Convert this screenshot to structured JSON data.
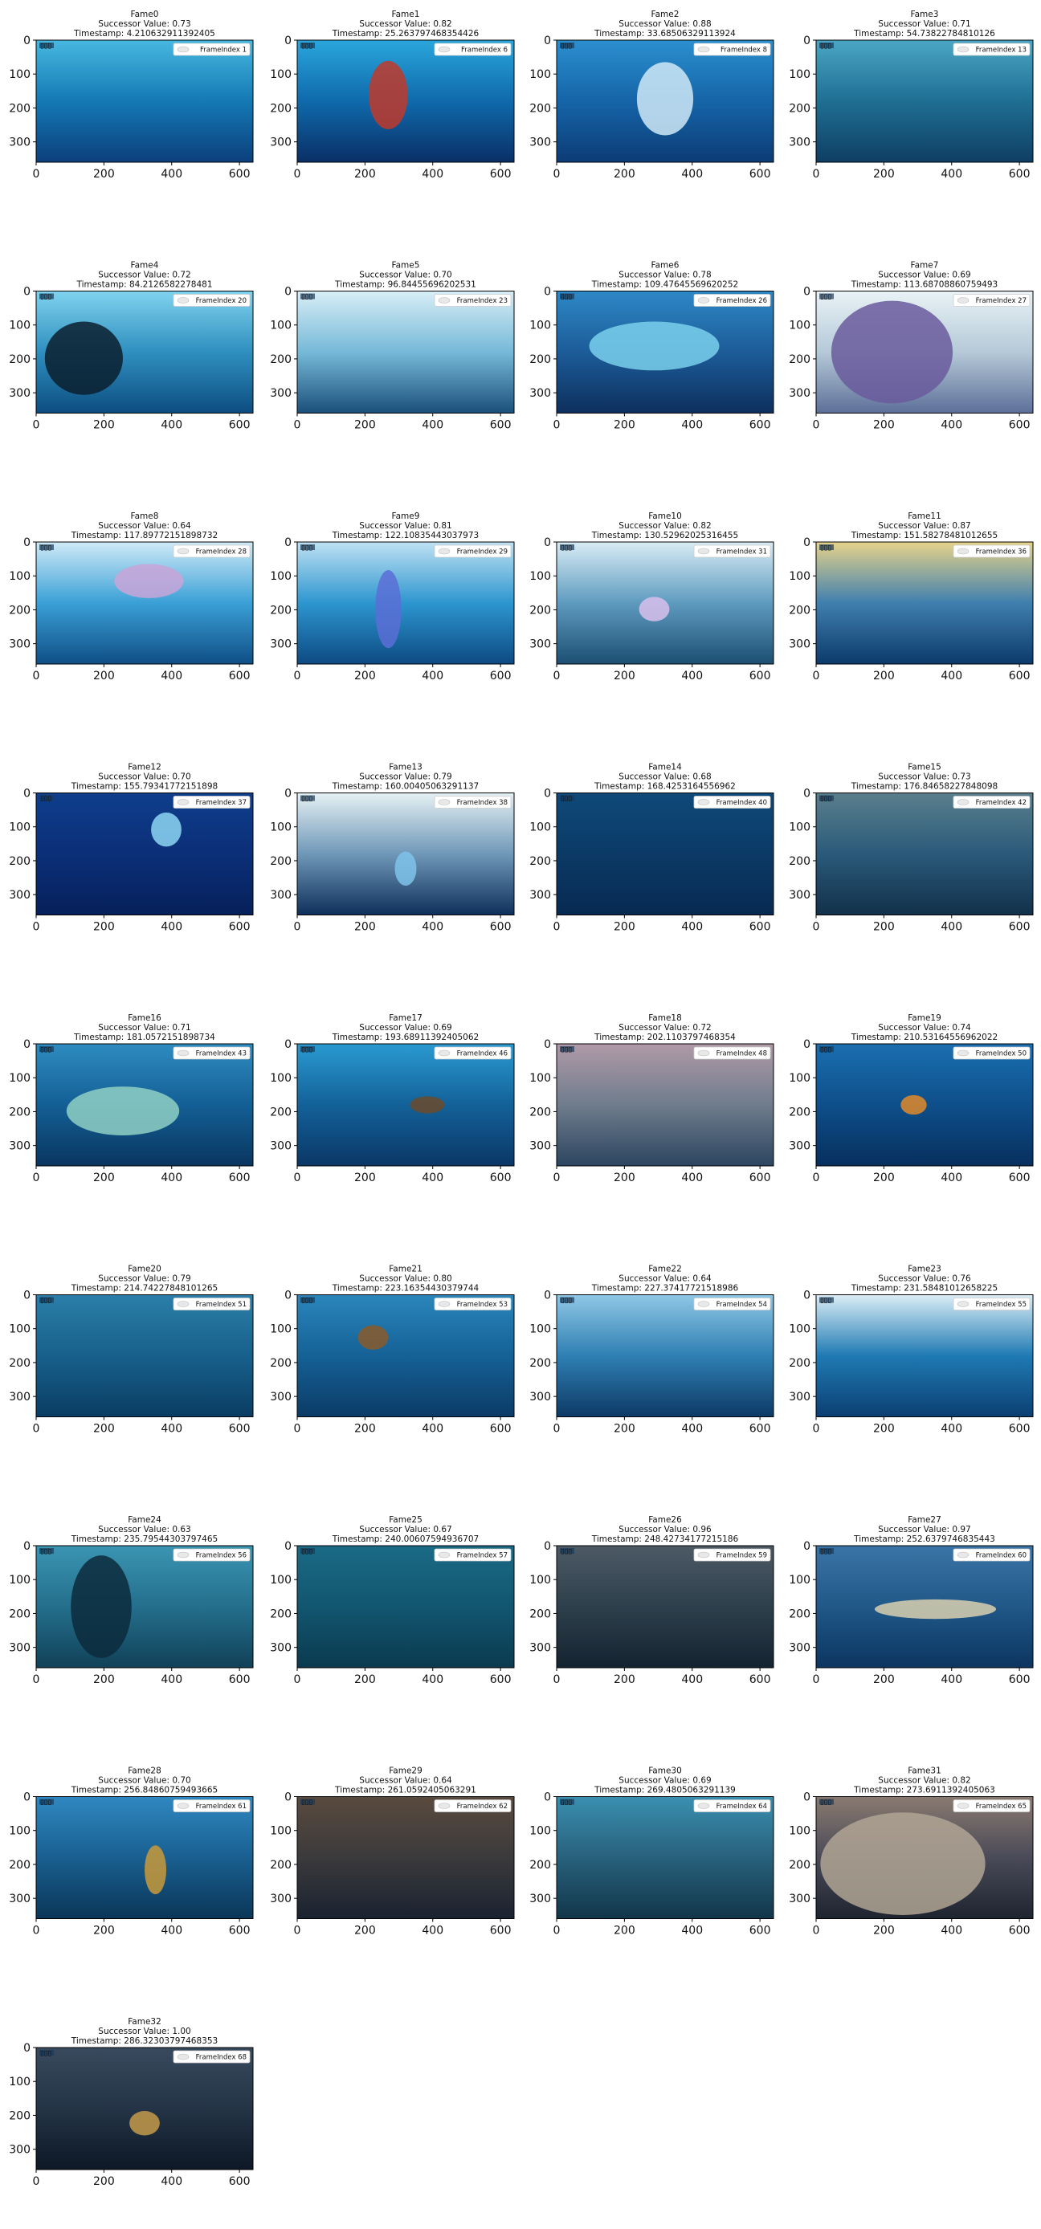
{
  "figure": {
    "ncols": 4,
    "xticks": [
      0,
      200,
      400,
      600
    ],
    "yticks": [
      0,
      100,
      200,
      300
    ],
    "xlim": [
      0,
      640
    ],
    "ylim": [
      360,
      0
    ],
    "badge": "▯▯▯"
  },
  "chart_data": [
    {
      "type": "image",
      "title": "Fame0",
      "successor_value": "0.73",
      "timestamp": "4.210632911392405",
      "legend": "FrameIndex 1",
      "colors": [
        "#47b8e0",
        "#1479b4",
        "#0b3f7c"
      ]
    },
    {
      "type": "image",
      "title": "Fame1",
      "successor_value": "0.82",
      "timestamp": "25.263797468354426",
      "legend": "FrameIndex 6",
      "colors": [
        "#2aa6dc",
        "#0f6aab",
        "#0a2f66"
      ],
      "subject": {
        "color": "#c0392b",
        "cx": 0.42,
        "cy": 0.45,
        "rx": 0.09,
        "ry": 0.28
      }
    },
    {
      "type": "image",
      "title": "Fame2",
      "successor_value": "0.88",
      "timestamp": "33.68506329113924",
      "legend": "FrameIndex 8",
      "colors": [
        "#2b8fcf",
        "#1565a8",
        "#0c3c76"
      ],
      "subject": {
        "color": "#cfe9f7",
        "cx": 0.5,
        "cy": 0.48,
        "rx": 0.13,
        "ry": 0.3
      }
    },
    {
      "type": "image",
      "title": "Fame3",
      "successor_value": "0.71",
      "timestamp": "54.73822784810126",
      "legend": "FrameIndex 13",
      "colors": [
        "#4aa6c4",
        "#1f6f93",
        "#0f3e63"
      ]
    },
    {
      "type": "image",
      "title": "Fame4",
      "successor_value": "0.72",
      "timestamp": "84.2126582278481",
      "legend": "FrameIndex 20",
      "colors": [
        "#7fd3ee",
        "#2f8fbf",
        "#0d4d80"
      ],
      "subject": {
        "color": "#0b1f2e",
        "cx": 0.22,
        "cy": 0.55,
        "rx": 0.18,
        "ry": 0.3
      }
    },
    {
      "type": "image",
      "title": "Fame5",
      "successor_value": "0.70",
      "timestamp": "96.84455696202531",
      "legend": "FrameIndex 23",
      "colors": [
        "#d8eef6",
        "#76b9d8",
        "#1a4f7a"
      ]
    },
    {
      "type": "image",
      "title": "Fame6",
      "successor_value": "0.78",
      "timestamp": "109.47645569620252",
      "legend": "FrameIndex 26",
      "colors": [
        "#2e88c6",
        "#1c5c99",
        "#0e2f5d"
      ],
      "subject": {
        "color": "#7ad0ec",
        "cx": 0.45,
        "cy": 0.45,
        "rx": 0.3,
        "ry": 0.2
      }
    },
    {
      "type": "image",
      "title": "Fame7",
      "successor_value": "0.69",
      "timestamp": "113.68708860759493",
      "legend": "FrameIndex 27",
      "colors": [
        "#e9f3f6",
        "#b5c9d8",
        "#5d6f98"
      ],
      "subject": {
        "color": "#6a5a9c",
        "cx": 0.35,
        "cy": 0.5,
        "rx": 0.28,
        "ry": 0.42
      }
    },
    {
      "type": "image",
      "title": "Fame8",
      "successor_value": "0.64",
      "timestamp": "117.89772151898732",
      "legend": "FrameIndex 28",
      "colors": [
        "#cfeaf7",
        "#3aa0d6",
        "#0f4e86"
      ],
      "subject": {
        "color": "#c9a4d8",
        "cx": 0.52,
        "cy": 0.32,
        "rx": 0.16,
        "ry": 0.14
      }
    },
    {
      "type": "image",
      "title": "Fame9",
      "successor_value": "0.81",
      "timestamp": "122.10835443037973",
      "legend": "FrameIndex 29",
      "colors": [
        "#bfe2f3",
        "#2d96cf",
        "#0d4a83"
      ],
      "subject": {
        "color": "#5b6fd6",
        "cx": 0.42,
        "cy": 0.55,
        "rx": 0.06,
        "ry": 0.32
      }
    },
    {
      "type": "image",
      "title": "Fame10",
      "successor_value": "0.82",
      "timestamp": "130.52962025316455",
      "legend": "FrameIndex 31",
      "colors": [
        "#d9ecf5",
        "#5e9bbf",
        "#1c4f72"
      ],
      "subject": {
        "color": "#d8c0ec",
        "cx": 0.45,
        "cy": 0.55,
        "rx": 0.07,
        "ry": 0.1
      }
    },
    {
      "type": "image",
      "title": "Fame11",
      "successor_value": "0.87",
      "timestamp": "151.58278481012655",
      "legend": "FrameIndex 36",
      "colors": [
        "#e6d38a",
        "#3f7fae",
        "#0b3a6b"
      ]
    },
    {
      "type": "image",
      "title": "Fame12",
      "successor_value": "0.70",
      "timestamp": "155.79341772151898",
      "legend": "FrameIndex 37",
      "colors": [
        "#0f3e8c",
        "#0b2f78",
        "#06205a"
      ],
      "subject": {
        "color": "#8ed6f3",
        "cx": 0.6,
        "cy": 0.3,
        "rx": 0.07,
        "ry": 0.14
      }
    },
    {
      "type": "image",
      "title": "Fame13",
      "successor_value": "0.79",
      "timestamp": "160.00405063291137",
      "legend": "FrameIndex 38",
      "colors": [
        "#e5f1f4",
        "#6f98b8",
        "#0e2f5b"
      ],
      "subject": {
        "color": "#7fc3ea",
        "cx": 0.5,
        "cy": 0.62,
        "rx": 0.05,
        "ry": 0.14
      }
    },
    {
      "type": "image",
      "title": "Fame14",
      "successor_value": "0.68",
      "timestamp": "168.4253164556962",
      "legend": "FrameIndex 40",
      "colors": [
        "#0f4a7a",
        "#0b3a66",
        "#082a52"
      ]
    },
    {
      "type": "image",
      "title": "Fame15",
      "successor_value": "0.73",
      "timestamp": "176.84658227848098",
      "legend": "FrameIndex 42",
      "colors": [
        "#5a7f8c",
        "#2a5a7a",
        "#12304a"
      ]
    },
    {
      "type": "image",
      "title": "Fame16",
      "successor_value": "0.71",
      "timestamp": "181.0572151898734",
      "legend": "FrameIndex 43",
      "colors": [
        "#2e8cc0",
        "#135f95",
        "#09365f"
      ],
      "subject": {
        "color": "#8fd0c4",
        "cx": 0.4,
        "cy": 0.55,
        "rx": 0.26,
        "ry": 0.2
      }
    },
    {
      "type": "image",
      "title": "Fame17",
      "successor_value": "0.69",
      "timestamp": "193.68911392405062",
      "legend": "FrameIndex 46",
      "colors": [
        "#2a9ad0",
        "#136199",
        "#0a3766"
      ],
      "subject": {
        "color": "#6b4a2a",
        "cx": 0.6,
        "cy": 0.5,
        "rx": 0.08,
        "ry": 0.07
      }
    },
    {
      "type": "image",
      "title": "Fame18",
      "successor_value": "0.72",
      "timestamp": "202.1103797468354",
      "legend": "FrameIndex 48",
      "colors": [
        "#b09aa8",
        "#6f7c8c",
        "#2c4560"
      ]
    },
    {
      "type": "image",
      "title": "Fame19",
      "successor_value": "0.74",
      "timestamp": "210.53164556962022",
      "legend": "FrameIndex 50",
      "colors": [
        "#1a6fb0",
        "#0e4f8a",
        "#072f5e"
      ],
      "subject": {
        "color": "#e08a2a",
        "cx": 0.45,
        "cy": 0.5,
        "rx": 0.06,
        "ry": 0.08
      }
    },
    {
      "type": "image",
      "title": "Fame20",
      "successor_value": "0.79",
      "timestamp": "214.74227848101265",
      "legend": "FrameIndex 51",
      "colors": [
        "#2b7fa8",
        "#17608c",
        "#0a3d62"
      ]
    },
    {
      "type": "image",
      "title": "Fame21",
      "successor_value": "0.80",
      "timestamp": "223.16354430379744",
      "legend": "FrameIndex 53",
      "colors": [
        "#2a86bc",
        "#156196",
        "#0b3b66"
      ],
      "subject": {
        "color": "#8a5a2a",
        "cx": 0.35,
        "cy": 0.35,
        "rx": 0.07,
        "ry": 0.1
      }
    },
    {
      "type": "image",
      "title": "Fame22",
      "successor_value": "0.64",
      "timestamp": "227.37417721518986",
      "legend": "FrameIndex 54",
      "colors": [
        "#8fc8e6",
        "#2f7fb3",
        "#0d3a66"
      ]
    },
    {
      "type": "image",
      "title": "Fame23",
      "successor_value": "0.76",
      "timestamp": "231.58481012658225",
      "legend": "FrameIndex 55",
      "colors": [
        "#dbeef6",
        "#1f7ab3",
        "#0b3f72"
      ]
    },
    {
      "type": "image",
      "title": "Fame24",
      "successor_value": "0.63",
      "timestamp": "235.79544303797465",
      "legend": "FrameIndex 56",
      "colors": [
        "#3a95b2",
        "#246f8c",
        "#114158"
      ],
      "subject": {
        "color": "#0c2a3c",
        "cx": 0.3,
        "cy": 0.5,
        "rx": 0.14,
        "ry": 0.42
      }
    },
    {
      "type": "image",
      "title": "Fame25",
      "successor_value": "0.67",
      "timestamp": "240.00607594936707",
      "legend": "FrameIndex 57",
      "colors": [
        "#1a6a86",
        "#125670",
        "#0b3a4f"
      ]
    },
    {
      "type": "image",
      "title": "Fame26",
      "successor_value": "0.96",
      "timestamp": "248.42734177215186",
      "legend": "FrameIndex 59",
      "colors": [
        "#4d5a66",
        "#2e3f4c",
        "#142330"
      ]
    },
    {
      "type": "image",
      "title": "Fame27",
      "successor_value": "0.97",
      "timestamp": "252.6379746835443",
      "legend": "FrameIndex 60",
      "colors": [
        "#3a74a6",
        "#205888",
        "#0c3560"
      ],
      "subject": {
        "color": "#d9d0b0",
        "cx": 0.55,
        "cy": 0.52,
        "rx": 0.28,
        "ry": 0.08
      }
    },
    {
      "type": "image",
      "title": "Fame28",
      "successor_value": "0.70",
      "timestamp": "256.84860759493665",
      "legend": "FrameIndex 61",
      "colors": [
        "#2f88c0",
        "#195f90",
        "#0b3658"
      ],
      "subject": {
        "color": "#c89a3a",
        "cx": 0.55,
        "cy": 0.6,
        "rx": 0.05,
        "ry": 0.2
      }
    },
    {
      "type": "image",
      "title": "Fame29",
      "successor_value": "0.64",
      "timestamp": "261.0592405063291",
      "legend": "FrameIndex 62",
      "colors": [
        "#5a4a3e",
        "#3b3a3c",
        "#1a2230"
      ]
    },
    {
      "type": "image",
      "title": "Fame30",
      "successor_value": "0.69",
      "timestamp": "269.4805063291139",
      "legend": "FrameIndex 64",
      "colors": [
        "#3a8fb0",
        "#28617c",
        "#12364a"
      ]
    },
    {
      "type": "image",
      "title": "Fame31",
      "successor_value": "0.82",
      "timestamp": "273.6911392405063",
      "legend": "FrameIndex 65",
      "colors": [
        "#8a7a70",
        "#4a4a58",
        "#1e2430"
      ],
      "subject": {
        "color": "#b0a494",
        "cx": 0.4,
        "cy": 0.55,
        "rx": 0.38,
        "ry": 0.42
      }
    },
    {
      "type": "image",
      "title": "Fame32",
      "successor_value": "1.00",
      "timestamp": "286.32303797468353",
      "legend": "FrameIndex 68",
      "colors": [
        "#3a4a5e",
        "#243446",
        "#0e1826"
      ],
      "subject": {
        "color": "#c49a4a",
        "cx": 0.5,
        "cy": 0.62,
        "rx": 0.07,
        "ry": 0.1
      }
    }
  ]
}
